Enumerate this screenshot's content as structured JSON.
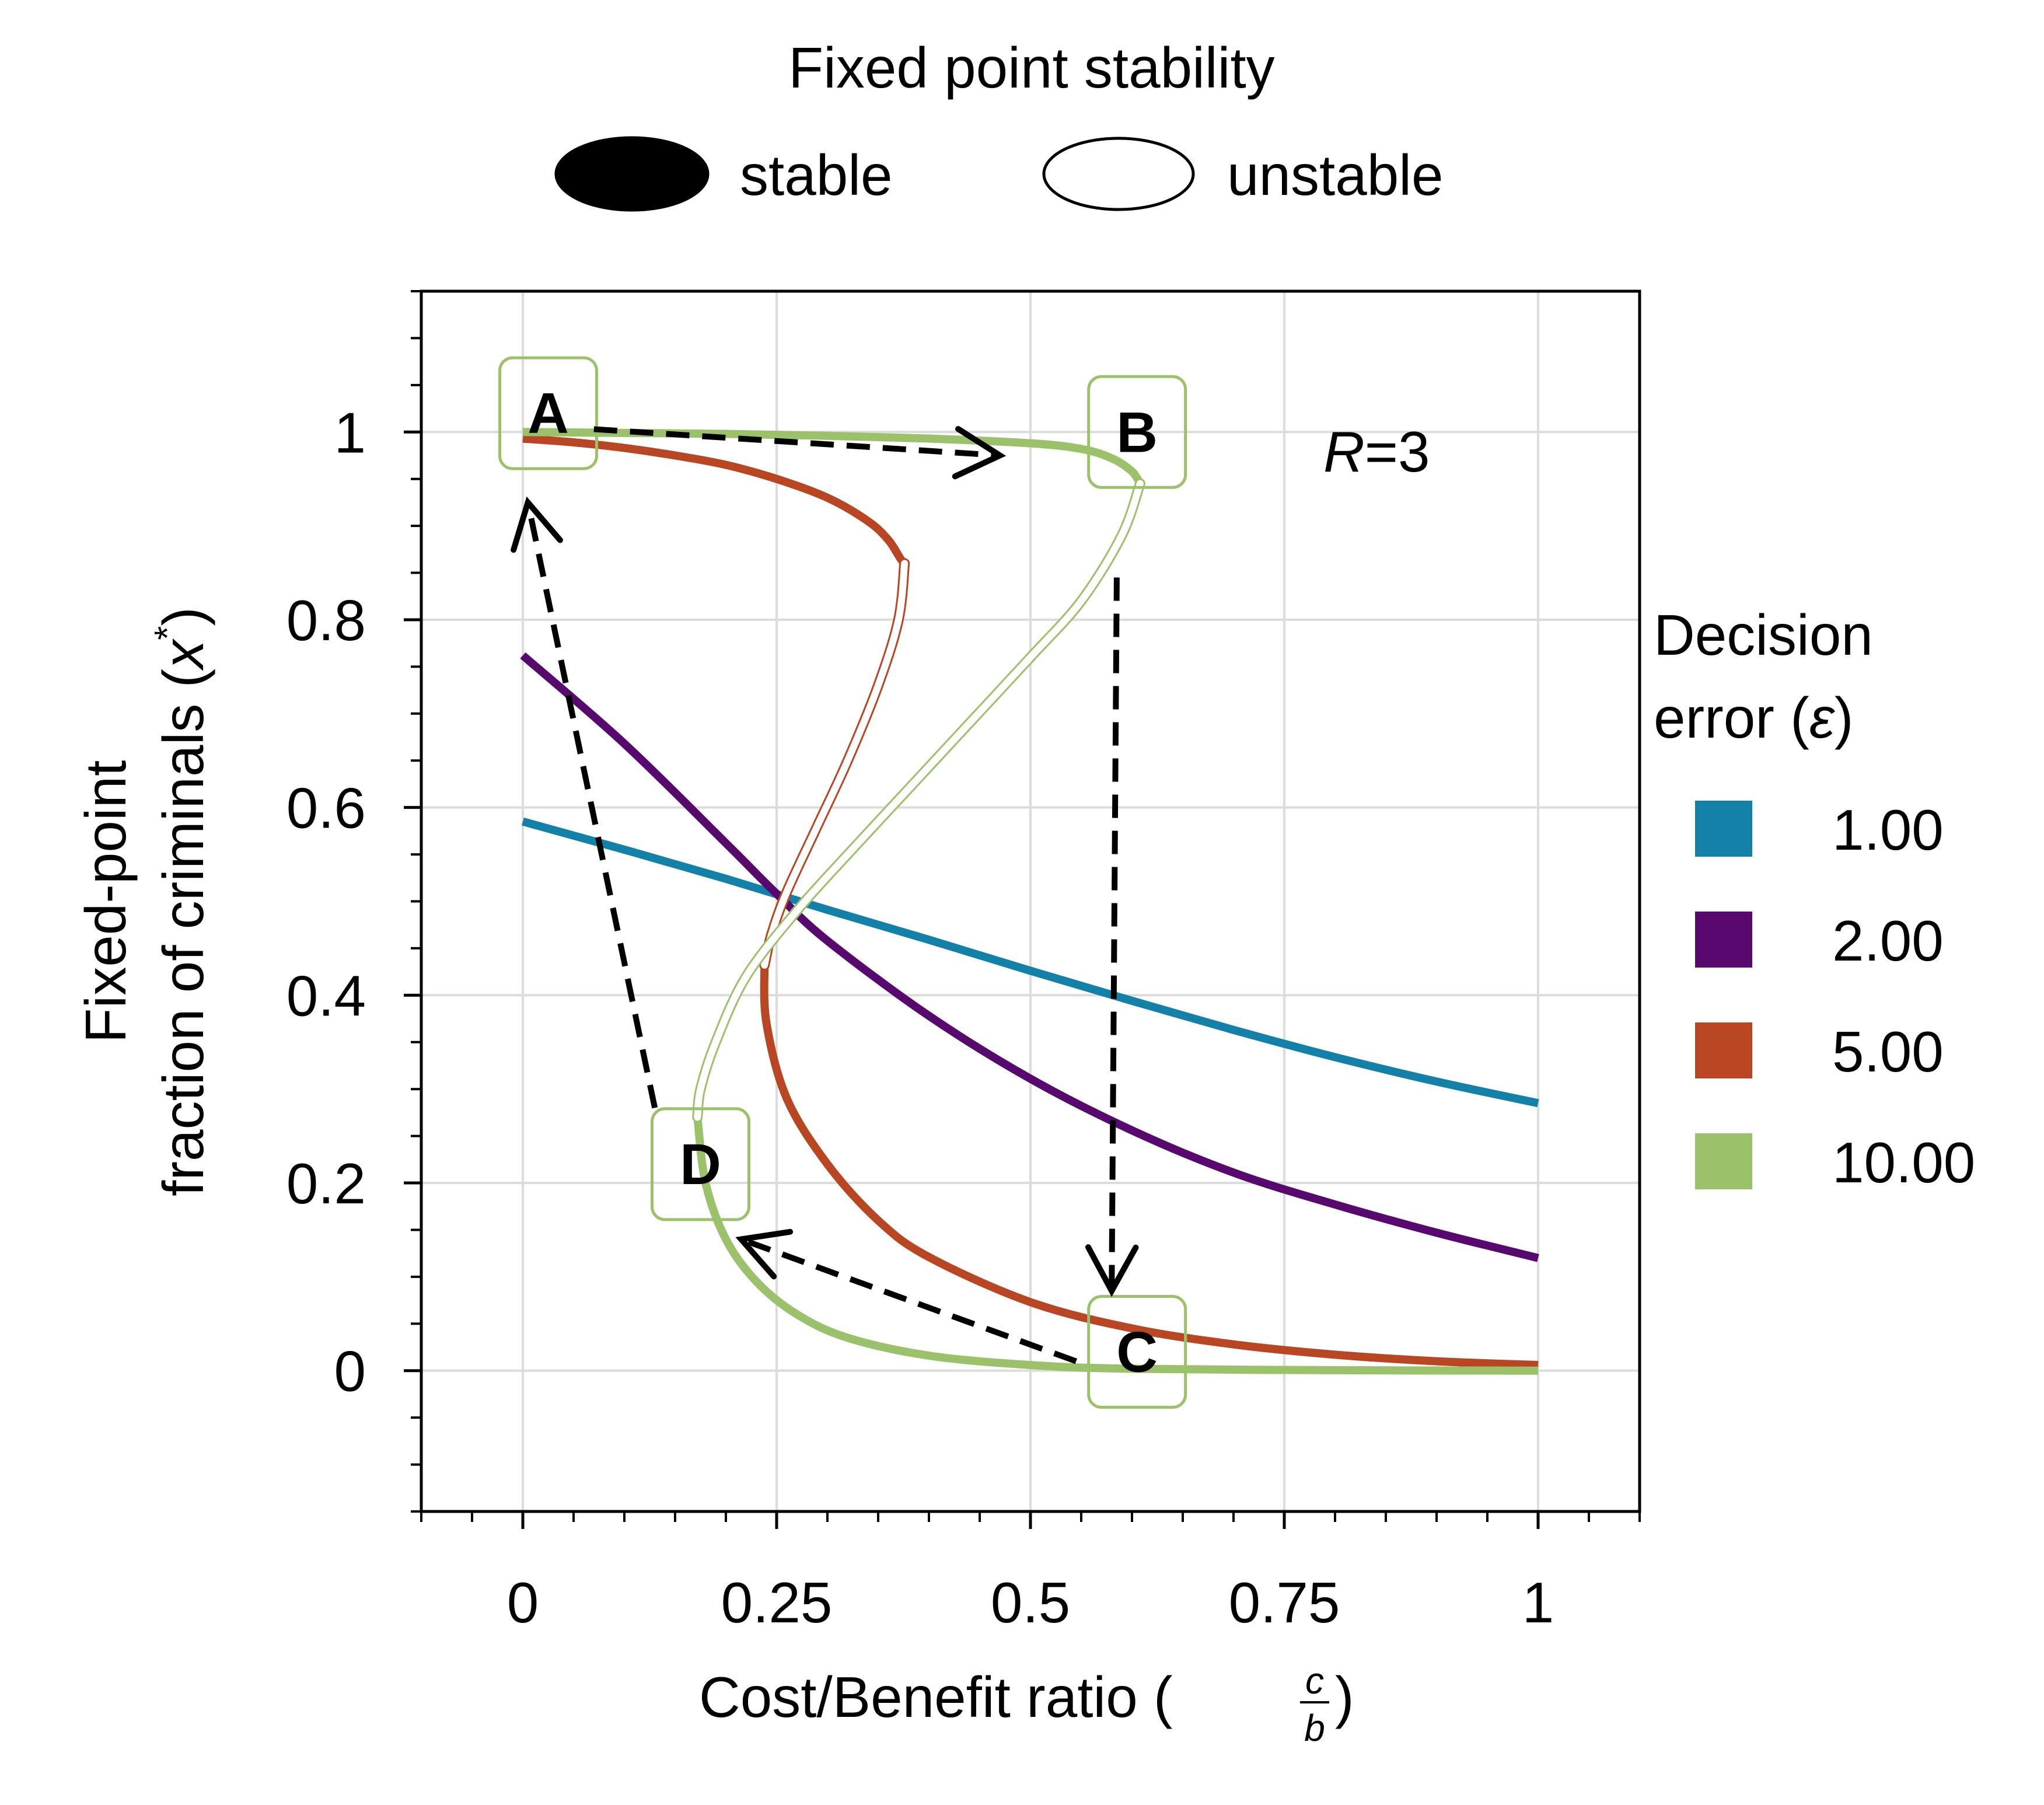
{
  "chart_data": {
    "type": "line",
    "xlabel": "Cost/Benefit ratio (c/b)",
    "xlabel_main": "Cost/Benefit ratio (",
    "xlabel_frac_num": "c",
    "xlabel_frac_den": "b",
    "xlabel_close": ")",
    "ylabel_line1": "Fixed-point",
    "ylabel_line2": "fraction of criminals (x*)",
    "ylabel_line2_main": "fraction of criminals (",
    "ylabel_var": "x",
    "ylabel_sup": "*",
    "ylabel_close": ")",
    "xlim": [
      -0.1,
      1.1
    ],
    "ylim": [
      -0.15,
      1.15
    ],
    "xticks": [
      0,
      0.25,
      0.5,
      0.75,
      1
    ],
    "xtick_labels": [
      "0",
      "0.25",
      "0.5",
      "0.75",
      "1"
    ],
    "yticks": [
      0,
      0.2,
      0.4,
      0.6,
      0.8,
      1
    ],
    "ytick_labels": [
      "0",
      "0.2",
      "0.4",
      "0.6",
      "0.8",
      "1"
    ],
    "grid": true,
    "annotation": {
      "var": "R",
      "rest": "=3"
    },
    "stability_legend": {
      "title": "Fixed point stability",
      "stable_label": "stable",
      "unstable_label": "unstable"
    },
    "series_legend": {
      "title_line1": "Decision",
      "title_line2_main": "error (",
      "title_line2_var": "ε",
      "title_line2_close": ")"
    },
    "series": [
      {
        "name": "1.00",
        "color": "#1380a8",
        "stable_x": [
          0,
          0.1,
          0.2,
          0.3,
          0.4,
          0.5,
          0.6,
          0.7,
          0.8,
          0.9,
          1.0
        ],
        "stable_y": [
          0.585,
          0.555,
          0.524,
          0.491,
          0.459,
          0.426,
          0.394,
          0.363,
          0.334,
          0.308,
          0.285
        ]
      },
      {
        "name": "2.00",
        "color": "#57096e",
        "stable_x": [
          0,
          0.1,
          0.2,
          0.25,
          0.3,
          0.4,
          0.5,
          0.6,
          0.7,
          0.8,
          0.9,
          1.0
        ],
        "stable_y": [
          0.762,
          0.668,
          0.562,
          0.508,
          0.458,
          0.378,
          0.311,
          0.256,
          0.211,
          0.177,
          0.147,
          0.12
        ]
      },
      {
        "name": "5.00",
        "color": "#b84622",
        "stable_upper": [
          [
            0,
            0.993
          ],
          [
            0.05,
            0.989
          ],
          [
            0.1,
            0.983
          ],
          [
            0.15,
            0.975
          ],
          [
            0.2,
            0.965
          ],
          [
            0.25,
            0.95
          ],
          [
            0.3,
            0.93
          ],
          [
            0.34,
            0.905
          ],
          [
            0.36,
            0.885
          ],
          [
            0.372,
            0.865
          ],
          [
            0.376,
            0.86
          ]
        ],
        "unstable": [
          [
            0.376,
            0.86
          ],
          [
            0.37,
            0.8
          ],
          [
            0.35,
            0.73
          ],
          [
            0.32,
            0.65
          ],
          [
            0.29,
            0.58
          ],
          [
            0.26,
            0.51
          ],
          [
            0.245,
            0.465
          ],
          [
            0.238,
            0.432
          ]
        ],
        "stable_lower": [
          [
            0.238,
            0.432
          ],
          [
            0.24,
            0.37
          ],
          [
            0.26,
            0.29
          ],
          [
            0.3,
            0.22
          ],
          [
            0.35,
            0.16
          ],
          [
            0.4,
            0.121
          ],
          [
            0.5,
            0.073
          ],
          [
            0.6,
            0.045
          ],
          [
            0.7,
            0.028
          ],
          [
            0.8,
            0.017
          ],
          [
            0.9,
            0.01
          ],
          [
            1.0,
            0.006
          ]
        ]
      },
      {
        "name": "10.00",
        "color": "#9bc26b",
        "stable_upper": [
          [
            0,
            1.0
          ],
          [
            0.1,
            0.999
          ],
          [
            0.2,
            0.998
          ],
          [
            0.3,
            0.996
          ],
          [
            0.4,
            0.993
          ],
          [
            0.5,
            0.988
          ],
          [
            0.55,
            0.982
          ],
          [
            0.58,
            0.972
          ],
          [
            0.6,
            0.958
          ],
          [
            0.608,
            0.945
          ]
        ],
        "unstable": [
          [
            0.608,
            0.945
          ],
          [
            0.59,
            0.89
          ],
          [
            0.55,
            0.82
          ],
          [
            0.5,
            0.76
          ],
          [
            0.44,
            0.69
          ],
          [
            0.38,
            0.62
          ],
          [
            0.32,
            0.55
          ],
          [
            0.27,
            0.49
          ],
          [
            0.22,
            0.42
          ],
          [
            0.19,
            0.35
          ],
          [
            0.175,
            0.3
          ],
          [
            0.172,
            0.27
          ]
        ],
        "stable_lower": [
          [
            0.172,
            0.27
          ],
          [
            0.18,
            0.2
          ],
          [
            0.2,
            0.14
          ],
          [
            0.23,
            0.095
          ],
          [
            0.27,
            0.06
          ],
          [
            0.32,
            0.035
          ],
          [
            0.4,
            0.016
          ],
          [
            0.5,
            0.006
          ],
          [
            0.6,
            0.002
          ],
          [
            0.8,
            0.0005
          ],
          [
            1.0,
            0.0
          ]
        ]
      }
    ],
    "markers": [
      {
        "label": "A",
        "x": 0.025,
        "y": 1.02
      },
      {
        "label": "B",
        "x": 0.605,
        "y": 1.0
      },
      {
        "label": "C",
        "x": 0.605,
        "y": 0.02
      },
      {
        "label": "D",
        "x": 0.175,
        "y": 0.22
      }
    ],
    "arrows": [
      {
        "from": [
          0.07,
          1.003
        ],
        "to": [
          0.47,
          0.975
        ],
        "bend": 0.0
      },
      {
        "from": [
          0.585,
          0.845
        ],
        "to": [
          0.58,
          0.085
        ],
        "bend": 0.0
      },
      {
        "from": [
          0.545,
          0.01
        ],
        "to": [
          0.215,
          0.14
        ],
        "bend": 0.0
      },
      {
        "from": [
          0.13,
          0.28
        ],
        "to": [
          0.005,
          0.925
        ],
        "bend": 0.0
      }
    ]
  }
}
